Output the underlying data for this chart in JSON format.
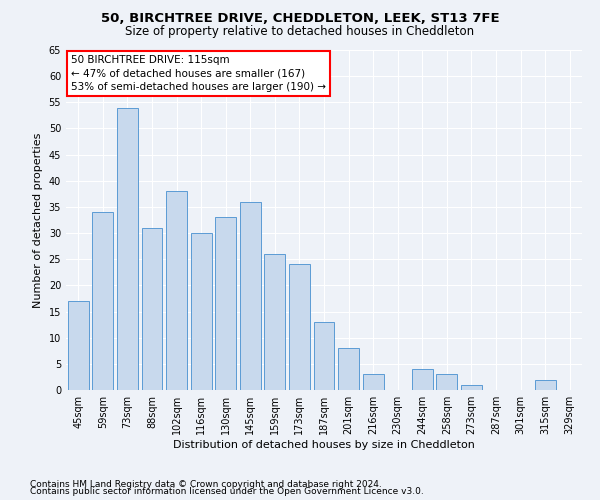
{
  "title": "50, BIRCHTREE DRIVE, CHEDDLETON, LEEK, ST13 7FE",
  "subtitle": "Size of property relative to detached houses in Cheddleton",
  "xlabel": "Distribution of detached houses by size in Cheddleton",
  "ylabel": "Number of detached properties",
  "categories": [
    "45sqm",
    "59sqm",
    "73sqm",
    "88sqm",
    "102sqm",
    "116sqm",
    "130sqm",
    "145sqm",
    "159sqm",
    "173sqm",
    "187sqm",
    "201sqm",
    "216sqm",
    "230sqm",
    "244sqm",
    "258sqm",
    "273sqm",
    "287sqm",
    "301sqm",
    "315sqm",
    "329sqm"
  ],
  "values": [
    17,
    34,
    54,
    31,
    38,
    30,
    33,
    36,
    26,
    24,
    13,
    8,
    3,
    0,
    4,
    3,
    1,
    0,
    0,
    2,
    0
  ],
  "bar_color": "#c8d9ed",
  "bar_edge_color": "#5b9bd5",
  "ylim": [
    0,
    65
  ],
  "yticks": [
    0,
    5,
    10,
    15,
    20,
    25,
    30,
    35,
    40,
    45,
    50,
    55,
    60,
    65
  ],
  "annotation_line1": "50 BIRCHTREE DRIVE: 115sqm",
  "annotation_line2": "← 47% of detached houses are smaller (167)",
  "annotation_line3": "53% of semi-detached houses are larger (190) →",
  "footer_line1": "Contains HM Land Registry data © Crown copyright and database right 2024.",
  "footer_line2": "Contains public sector information licensed under the Open Government Licence v3.0.",
  "title_fontsize": 9.5,
  "subtitle_fontsize": 8.5,
  "axis_label_fontsize": 8,
  "tick_fontsize": 7,
  "annotation_fontsize": 7.5,
  "footer_fontsize": 6.5,
  "bg_color": "#eef2f8",
  "plot_bg_color": "#eef2f8",
  "grid_color": "#ffffff"
}
